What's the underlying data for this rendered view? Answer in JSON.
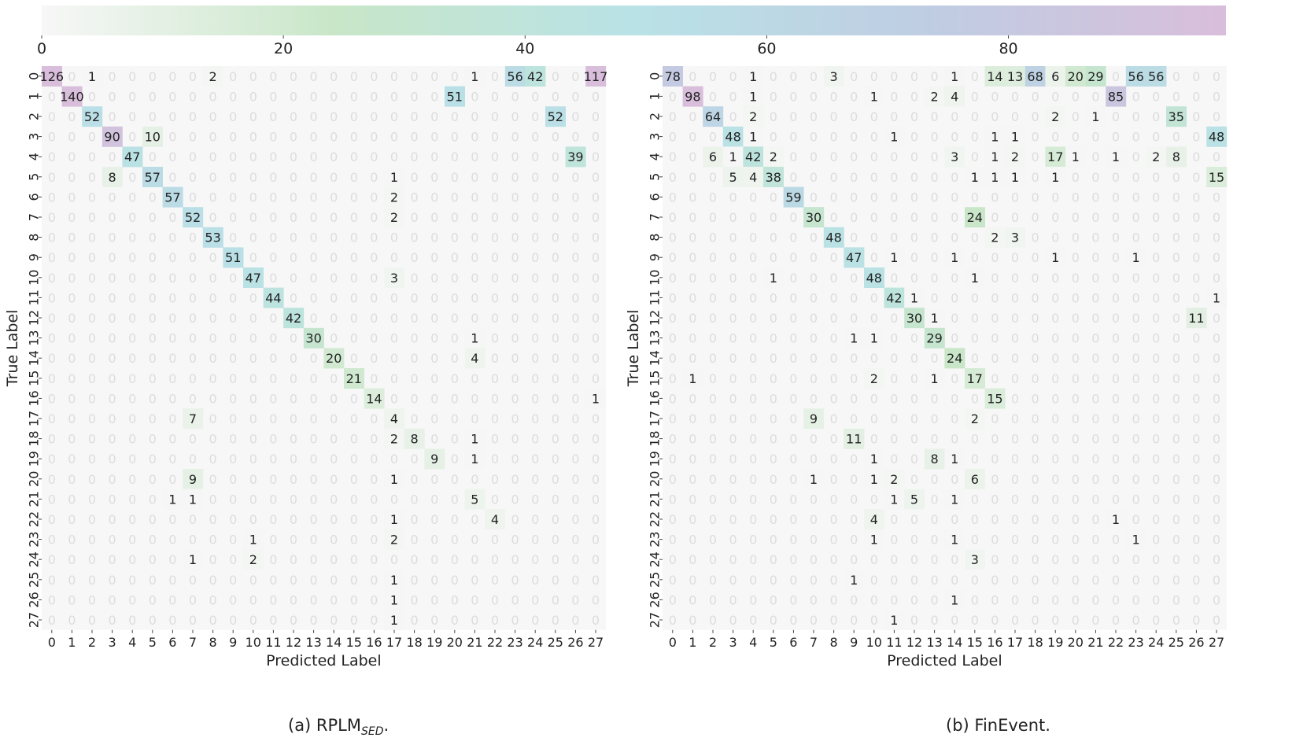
{
  "chart_data": [
    {
      "type": "heatmap",
      "title": "(a) RPLM",
      "title_subscript": "SED",
      "title_suffix": ".",
      "xlabel": "Predicted Label",
      "ylabel": "True Label",
      "labels": [
        "0",
        "1",
        "2",
        "3",
        "4",
        "5",
        "6",
        "7",
        "8",
        "9",
        "10",
        "11",
        "12",
        "13",
        "14",
        "15",
        "16",
        "17",
        "18",
        "19",
        "20",
        "21",
        "22",
        "23",
        "24",
        "25",
        "26",
        "27"
      ],
      "cells": [
        [
          0,
          0,
          126
        ],
        [
          0,
          2,
          1
        ],
        [
          0,
          8,
          2
        ],
        [
          0,
          21,
          1
        ],
        [
          0,
          23,
          56
        ],
        [
          0,
          24,
          42
        ],
        [
          0,
          27,
          117
        ],
        [
          1,
          1,
          140
        ],
        [
          1,
          20,
          51
        ],
        [
          2,
          2,
          52
        ],
        [
          2,
          25,
          52
        ],
        [
          3,
          3,
          90
        ],
        [
          3,
          5,
          10
        ],
        [
          4,
          4,
          47
        ],
        [
          4,
          26,
          39
        ],
        [
          5,
          3,
          8
        ],
        [
          5,
          5,
          57
        ],
        [
          5,
          17,
          1
        ],
        [
          6,
          6,
          57
        ],
        [
          6,
          17,
          2
        ],
        [
          7,
          7,
          52
        ],
        [
          7,
          17,
          2
        ],
        [
          8,
          8,
          53
        ],
        [
          9,
          9,
          51
        ],
        [
          10,
          10,
          47
        ],
        [
          10,
          17,
          3
        ],
        [
          11,
          11,
          44
        ],
        [
          12,
          12,
          42
        ],
        [
          13,
          13,
          30
        ],
        [
          13,
          21,
          1
        ],
        [
          14,
          14,
          20
        ],
        [
          14,
          21,
          4
        ],
        [
          15,
          15,
          21
        ],
        [
          16,
          16,
          14
        ],
        [
          16,
          27,
          1
        ],
        [
          17,
          7,
          7
        ],
        [
          17,
          17,
          4
        ],
        [
          18,
          17,
          2
        ],
        [
          18,
          18,
          8
        ],
        [
          18,
          21,
          1
        ],
        [
          19,
          19,
          9
        ],
        [
          19,
          21,
          1
        ],
        [
          20,
          7,
          9
        ],
        [
          20,
          17,
          1
        ],
        [
          21,
          6,
          1
        ],
        [
          21,
          7,
          1
        ],
        [
          21,
          21,
          5
        ],
        [
          22,
          17,
          1
        ],
        [
          22,
          22,
          4
        ],
        [
          23,
          10,
          1
        ],
        [
          23,
          17,
          2
        ],
        [
          24,
          7,
          1
        ],
        [
          24,
          10,
          2
        ],
        [
          25,
          17,
          1
        ],
        [
          26,
          17,
          1
        ],
        [
          27,
          17,
          1
        ]
      ]
    },
    {
      "type": "heatmap",
      "title": "(b) FinEvent.",
      "xlabel": "Predicted Label",
      "ylabel": "True Label",
      "labels": [
        "0",
        "1",
        "2",
        "3",
        "4",
        "5",
        "6",
        "7",
        "8",
        "9",
        "10",
        "11",
        "12",
        "13",
        "14",
        "15",
        "16",
        "17",
        "18",
        "19",
        "20",
        "21",
        "22",
        "23",
        "24",
        "25",
        "26",
        "27"
      ],
      "cells": [
        [
          0,
          0,
          78
        ],
        [
          0,
          4,
          1
        ],
        [
          0,
          8,
          3
        ],
        [
          0,
          14,
          1
        ],
        [
          0,
          16,
          14
        ],
        [
          0,
          17,
          13
        ],
        [
          0,
          18,
          68
        ],
        [
          0,
          19,
          6
        ],
        [
          0,
          20,
          20
        ],
        [
          0,
          21,
          29
        ],
        [
          0,
          23,
          56
        ],
        [
          0,
          24,
          56
        ],
        [
          1,
          1,
          98
        ],
        [
          1,
          4,
          1
        ],
        [
          1,
          10,
          1
        ],
        [
          1,
          13,
          2
        ],
        [
          1,
          14,
          4
        ],
        [
          1,
          22,
          85
        ],
        [
          2,
          2,
          64
        ],
        [
          2,
          4,
          2
        ],
        [
          2,
          19,
          2
        ],
        [
          2,
          21,
          1
        ],
        [
          2,
          25,
          35
        ],
        [
          3,
          3,
          48
        ],
        [
          3,
          4,
          1
        ],
        [
          3,
          11,
          1
        ],
        [
          3,
          16,
          1
        ],
        [
          3,
          17,
          1
        ],
        [
          3,
          27,
          48
        ],
        [
          4,
          2,
          6
        ],
        [
          4,
          3,
          1
        ],
        [
          4,
          4,
          42
        ],
        [
          4,
          5,
          2
        ],
        [
          4,
          14,
          3
        ],
        [
          4,
          16,
          1
        ],
        [
          4,
          17,
          2
        ],
        [
          4,
          19,
          17
        ],
        [
          4,
          20,
          1
        ],
        [
          4,
          22,
          1
        ],
        [
          4,
          24,
          2
        ],
        [
          4,
          25,
          8
        ],
        [
          5,
          3,
          5
        ],
        [
          5,
          4,
          4
        ],
        [
          5,
          5,
          38
        ],
        [
          5,
          15,
          1
        ],
        [
          5,
          16,
          1
        ],
        [
          5,
          17,
          1
        ],
        [
          5,
          19,
          1
        ],
        [
          5,
          27,
          15
        ],
        [
          6,
          6,
          59
        ],
        [
          7,
          7,
          30
        ],
        [
          7,
          15,
          24
        ],
        [
          8,
          8,
          48
        ],
        [
          8,
          16,
          2
        ],
        [
          8,
          17,
          3
        ],
        [
          9,
          9,
          47
        ],
        [
          9,
          11,
          1
        ],
        [
          9,
          14,
          1
        ],
        [
          9,
          19,
          1
        ],
        [
          9,
          23,
          1
        ],
        [
          10,
          5,
          1
        ],
        [
          10,
          10,
          48
        ],
        [
          10,
          15,
          1
        ],
        [
          11,
          11,
          42
        ],
        [
          11,
          12,
          1
        ],
        [
          11,
          27,
          1
        ],
        [
          12,
          12,
          30
        ],
        [
          12,
          13,
          1
        ],
        [
          12,
          26,
          11
        ],
        [
          13,
          9,
          1
        ],
        [
          13,
          10,
          1
        ],
        [
          13,
          13,
          29
        ],
        [
          14,
          14,
          24
        ],
        [
          15,
          1,
          1
        ],
        [
          15,
          10,
          2
        ],
        [
          15,
          13,
          1
        ],
        [
          15,
          15,
          17
        ],
        [
          16,
          16,
          15
        ],
        [
          17,
          7,
          9
        ],
        [
          17,
          15,
          2
        ],
        [
          18,
          9,
          11
        ],
        [
          19,
          10,
          1
        ],
        [
          19,
          13,
          8
        ],
        [
          19,
          14,
          1
        ],
        [
          20,
          7,
          1
        ],
        [
          20,
          10,
          1
        ],
        [
          20,
          11,
          2
        ],
        [
          20,
          15,
          6
        ],
        [
          21,
          11,
          1
        ],
        [
          21,
          12,
          5
        ],
        [
          21,
          14,
          1
        ],
        [
          22,
          10,
          4
        ],
        [
          22,
          22,
          1
        ],
        [
          23,
          10,
          1
        ],
        [
          23,
          14,
          1
        ],
        [
          23,
          23,
          1
        ],
        [
          24,
          15,
          3
        ],
        [
          25,
          9,
          1
        ],
        [
          26,
          14,
          1
        ],
        [
          27,
          11,
          1
        ]
      ]
    }
  ],
  "colorbar": {
    "ticks": [
      "0",
      "20",
      "40",
      "60",
      "80"
    ],
    "tick_values": [
      0,
      20,
      40,
      60,
      80
    ],
    "range": [
      0,
      98
    ],
    "colors": [
      "#f7f7f7",
      "#c8e6c8",
      "#b9e2e6",
      "#bfcde3",
      "#d9bedb"
    ]
  },
  "zero_text_color": "#dddddd",
  "cell_bg_color": "#f7f7f7"
}
